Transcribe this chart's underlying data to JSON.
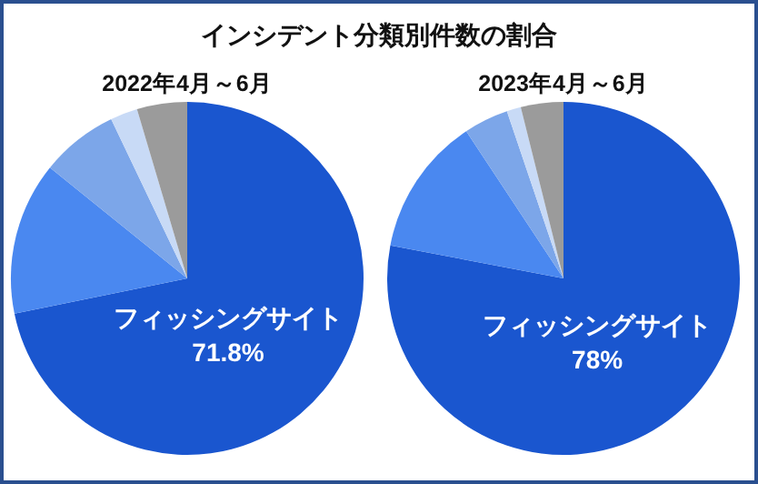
{
  "chart_data": [
    {
      "type": "pie",
      "title": "インシデント分類別件数の割合",
      "subtitle": "2022年4月～6月",
      "categories": [
        "フィッシングサイト",
        null,
        null,
        null,
        null
      ],
      "values": [
        71.8,
        14.0,
        7.1,
        2.5,
        4.6
      ],
      "colors": [
        "#1a56cf",
        "#4a88f0",
        "#7ca6e9",
        "#c8daf6",
        "#9b9b9b"
      ],
      "value_labels": [
        "71.8%",
        null,
        null,
        null,
        null
      ]
    },
    {
      "type": "pie",
      "subtitle": "2023年4月～6月",
      "categories": [
        "フィッシングサイト",
        null,
        null,
        null,
        null
      ],
      "values": [
        78,
        12.7,
        4.1,
        1.3,
        3.9
      ],
      "colors": [
        "#1a56cf",
        "#4a88f0",
        "#7ca6e9",
        "#c8daf6",
        "#9b9b9b"
      ],
      "value_labels": [
        "78%",
        null,
        null,
        null,
        null
      ]
    }
  ]
}
